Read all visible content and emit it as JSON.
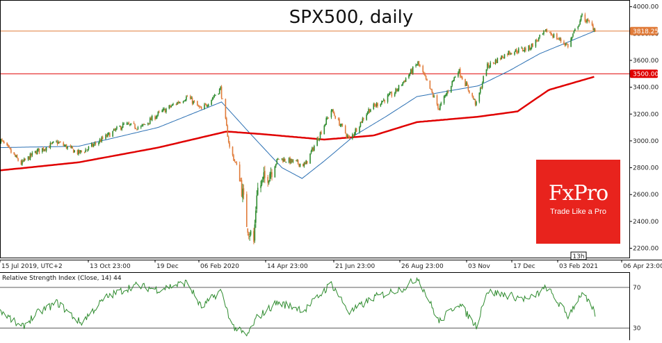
{
  "chart_data": {
    "type": "line",
    "title": "SPX500, daily",
    "price_axis": {
      "ticks": [
        2200,
        2400,
        2600,
        2800,
        3000,
        3200,
        3400,
        3600,
        3800,
        4000
      ],
      "tick_labels": [
        "2200.00",
        "2400.00",
        "2600.00",
        "2800.00",
        "3000.00",
        "3200.00",
        "3400.00",
        "3600.00",
        "3800.00",
        "4000.00"
      ],
      "range": [
        2125,
        4050
      ]
    },
    "time_axis": {
      "labels": [
        "15 Jul 2019, UTC+2",
        "13 Oct 23:00",
        "19 Dec",
        "06 Feb 2020",
        "14 Apr 23:00",
        "21 Jun 23:00",
        "26 Aug 23:00",
        "03 Nov",
        "17 Dec",
        "03 Feb 2021",
        "06 Apr 23:00"
      ],
      "current_marker": "13h"
    },
    "horizontal_levels": [
      {
        "value": 3818.25,
        "label": "3818.25",
        "color": "#e07b39"
      },
      {
        "value": 3500.0,
        "label": "3500.00",
        "color": "#e00000"
      }
    ],
    "series": [
      {
        "type": "candlestick",
        "up_color": "#2e8b2e",
        "down_color": "#e07b39",
        "close_path": [
          [
            "2019-07-15",
            3010
          ],
          [
            "2019-08-05",
            2830
          ],
          [
            "2019-08-20",
            2920
          ],
          [
            "2019-09-10",
            2990
          ],
          [
            "2019-10-01",
            2910
          ],
          [
            "2019-10-10",
            2940
          ],
          [
            "2019-10-28",
            3030
          ],
          [
            "2019-11-15",
            3120
          ],
          [
            "2019-12-02",
            3100
          ],
          [
            "2019-12-19",
            3200
          ],
          [
            "2020-01-17",
            3330
          ],
          [
            "2020-01-31",
            3230
          ],
          [
            "2020-02-19",
            3390
          ],
          [
            "2020-02-28",
            2950
          ],
          [
            "2020-03-09",
            2750
          ],
          [
            "2020-03-16",
            2390
          ],
          [
            "2020-03-23",
            2240
          ],
          [
            "2020-03-26",
            2630
          ],
          [
            "2020-04-17",
            2870
          ],
          [
            "2020-05-13",
            2820
          ],
          [
            "2020-06-08",
            3230
          ],
          [
            "2020-06-26",
            3010
          ],
          [
            "2020-07-15",
            3230
          ],
          [
            "2020-08-10",
            3360
          ],
          [
            "2020-09-02",
            3580
          ],
          [
            "2020-09-23",
            3240
          ],
          [
            "2020-10-12",
            3530
          ],
          [
            "2020-10-30",
            3270
          ],
          [
            "2020-11-09",
            3550
          ],
          [
            "2020-12-01",
            3660
          ],
          [
            "2020-12-21",
            3690
          ],
          [
            "2021-01-08",
            3820
          ],
          [
            "2021-01-29",
            3710
          ],
          [
            "2021-02-12",
            3930
          ],
          [
            "2021-02-25",
            3830
          ]
        ]
      },
      {
        "type": "moving_average",
        "color": "#2a6fb3",
        "path": [
          [
            "2019-07-15",
            2950
          ],
          [
            "2019-10-01",
            2960
          ],
          [
            "2019-12-19",
            3100
          ],
          [
            "2020-02-20",
            3290
          ],
          [
            "2020-03-20",
            3050
          ],
          [
            "2020-04-20",
            2800
          ],
          [
            "2020-05-10",
            2720
          ],
          [
            "2020-06-01",
            2850
          ],
          [
            "2020-07-01",
            3040
          ],
          [
            "2020-08-01",
            3180
          ],
          [
            "2020-09-01",
            3330
          ],
          [
            "2020-10-01",
            3370
          ],
          [
            "2020-11-01",
            3410
          ],
          [
            "2020-12-01",
            3520
          ],
          [
            "2021-01-01",
            3650
          ],
          [
            "2021-02-25",
            3820
          ]
        ]
      },
      {
        "type": "moving_average",
        "color": "#e00000",
        "path": [
          [
            "2019-07-15",
            2780
          ],
          [
            "2019-10-01",
            2840
          ],
          [
            "2019-12-19",
            2950
          ],
          [
            "2020-02-25",
            3070
          ],
          [
            "2020-04-01",
            3050
          ],
          [
            "2020-06-01",
            3010
          ],
          [
            "2020-07-20",
            3040
          ],
          [
            "2020-09-01",
            3140
          ],
          [
            "2020-11-01",
            3180
          ],
          [
            "2020-12-10",
            3220
          ],
          [
            "2021-01-10",
            3380
          ],
          [
            "2021-02-25",
            3480
          ]
        ]
      }
    ],
    "rsi": {
      "label": "Relative Strength Index (Close, 14) 44",
      "levels": [
        70,
        30
      ],
      "level_labels": [
        "70",
        "30"
      ],
      "range": [
        18,
        85
      ],
      "color": "#2e8b2e",
      "path": [
        [
          "2019-07-15",
          48
        ],
        [
          "2019-08-05",
          30
        ],
        [
          "2019-08-20",
          44
        ],
        [
          "2019-09-10",
          55
        ],
        [
          "2019-10-03",
          35
        ],
        [
          "2019-10-28",
          60
        ],
        [
          "2019-11-25",
          72
        ],
        [
          "2019-12-19",
          68
        ],
        [
          "2020-01-17",
          75
        ],
        [
          "2020-01-31",
          50
        ],
        [
          "2020-02-19",
          67
        ],
        [
          "2020-03-02",
          32
        ],
        [
          "2020-03-16",
          22
        ],
        [
          "2020-03-26",
          40
        ],
        [
          "2020-04-15",
          55
        ],
        [
          "2020-05-13",
          48
        ],
        [
          "2020-06-08",
          74
        ],
        [
          "2020-06-26",
          45
        ],
        [
          "2020-07-20",
          60
        ],
        [
          "2020-08-20",
          70
        ],
        [
          "2020-09-02",
          80
        ],
        [
          "2020-09-23",
          36
        ],
        [
          "2020-10-12",
          55
        ],
        [
          "2020-10-30",
          32
        ],
        [
          "2020-11-09",
          66
        ],
        [
          "2020-12-01",
          62
        ],
        [
          "2020-12-21",
          58
        ],
        [
          "2021-01-08",
          70
        ],
        [
          "2021-01-29",
          42
        ],
        [
          "2021-02-12",
          65
        ],
        [
          "2021-02-25",
          44
        ]
      ]
    }
  },
  "branding": {
    "logo_text": "FxPro",
    "slogan": "Trade Like a Pro"
  },
  "colors": {
    "grid_border": "#000000",
    "brand_red": "#e8231d"
  }
}
